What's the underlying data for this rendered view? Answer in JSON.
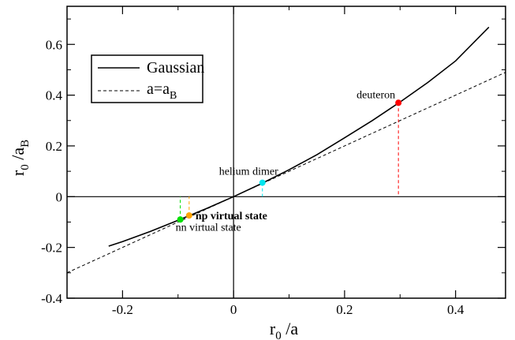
{
  "chart_data": {
    "type": "line",
    "xlabel": {
      "main": "r",
      "sub": "0",
      "rest": " /a"
    },
    "ylabel": {
      "main": "r",
      "sub0": "0",
      "mid": " /a",
      "sub1": "B"
    },
    "xlim": [
      -0.3,
      0.49
    ],
    "ylim": [
      -0.4,
      0.75
    ],
    "x_ticks": [
      -0.2,
      0,
      0.2,
      0.4
    ],
    "x_tick_labels": [
      "-0.2",
      "0",
      "0.2",
      "0.4"
    ],
    "y_ticks": [
      -0.4,
      -0.2,
      0,
      0.2,
      0.4,
      0.6
    ],
    "y_tick_labels": [
      "-0.4",
      "-0.2",
      "0",
      "0.2",
      "0.4",
      "0.6"
    ],
    "legend": {
      "placement": "top-left",
      "entries": [
        {
          "label": "Gaussian",
          "style": "solid"
        },
        {
          "label_main": "a=a",
          "label_sub": "B",
          "style": "dashed"
        }
      ]
    },
    "series": [
      {
        "name": "Gaussian",
        "style": "solid",
        "color": "#000000",
        "x": [
          -0.225,
          -0.2,
          -0.15,
          -0.1,
          -0.05,
          0,
          0.05,
          0.1,
          0.15,
          0.2,
          0.25,
          0.3,
          0.35,
          0.4,
          0.46
        ],
        "y": [
          -0.195,
          -0.177,
          -0.137,
          -0.093,
          -0.048,
          0,
          0.051,
          0.106,
          0.165,
          0.232,
          0.3,
          0.373,
          0.45,
          0.535,
          0.668
        ]
      },
      {
        "name": "a=aB",
        "style": "dashed",
        "color": "#000000",
        "x": [
          -0.3,
          0.49
        ],
        "y": [
          -0.3,
          0.49
        ]
      }
    ],
    "points": [
      {
        "label": "deuteron",
        "x": 0.297,
        "y": 0.37,
        "color": "#ff0000",
        "weight": "normal"
      },
      {
        "label": "helium dimer",
        "x": 0.052,
        "y": 0.055,
        "color": "#00e5ee",
        "weight": "normal"
      },
      {
        "label": "np virtual state",
        "x": -0.08,
        "y": -0.074,
        "color": "#ffa500",
        "weight": "bold"
      },
      {
        "label": "nn virtual state",
        "x": -0.096,
        "y": -0.09,
        "color": "#00e000",
        "weight": "normal"
      }
    ]
  }
}
